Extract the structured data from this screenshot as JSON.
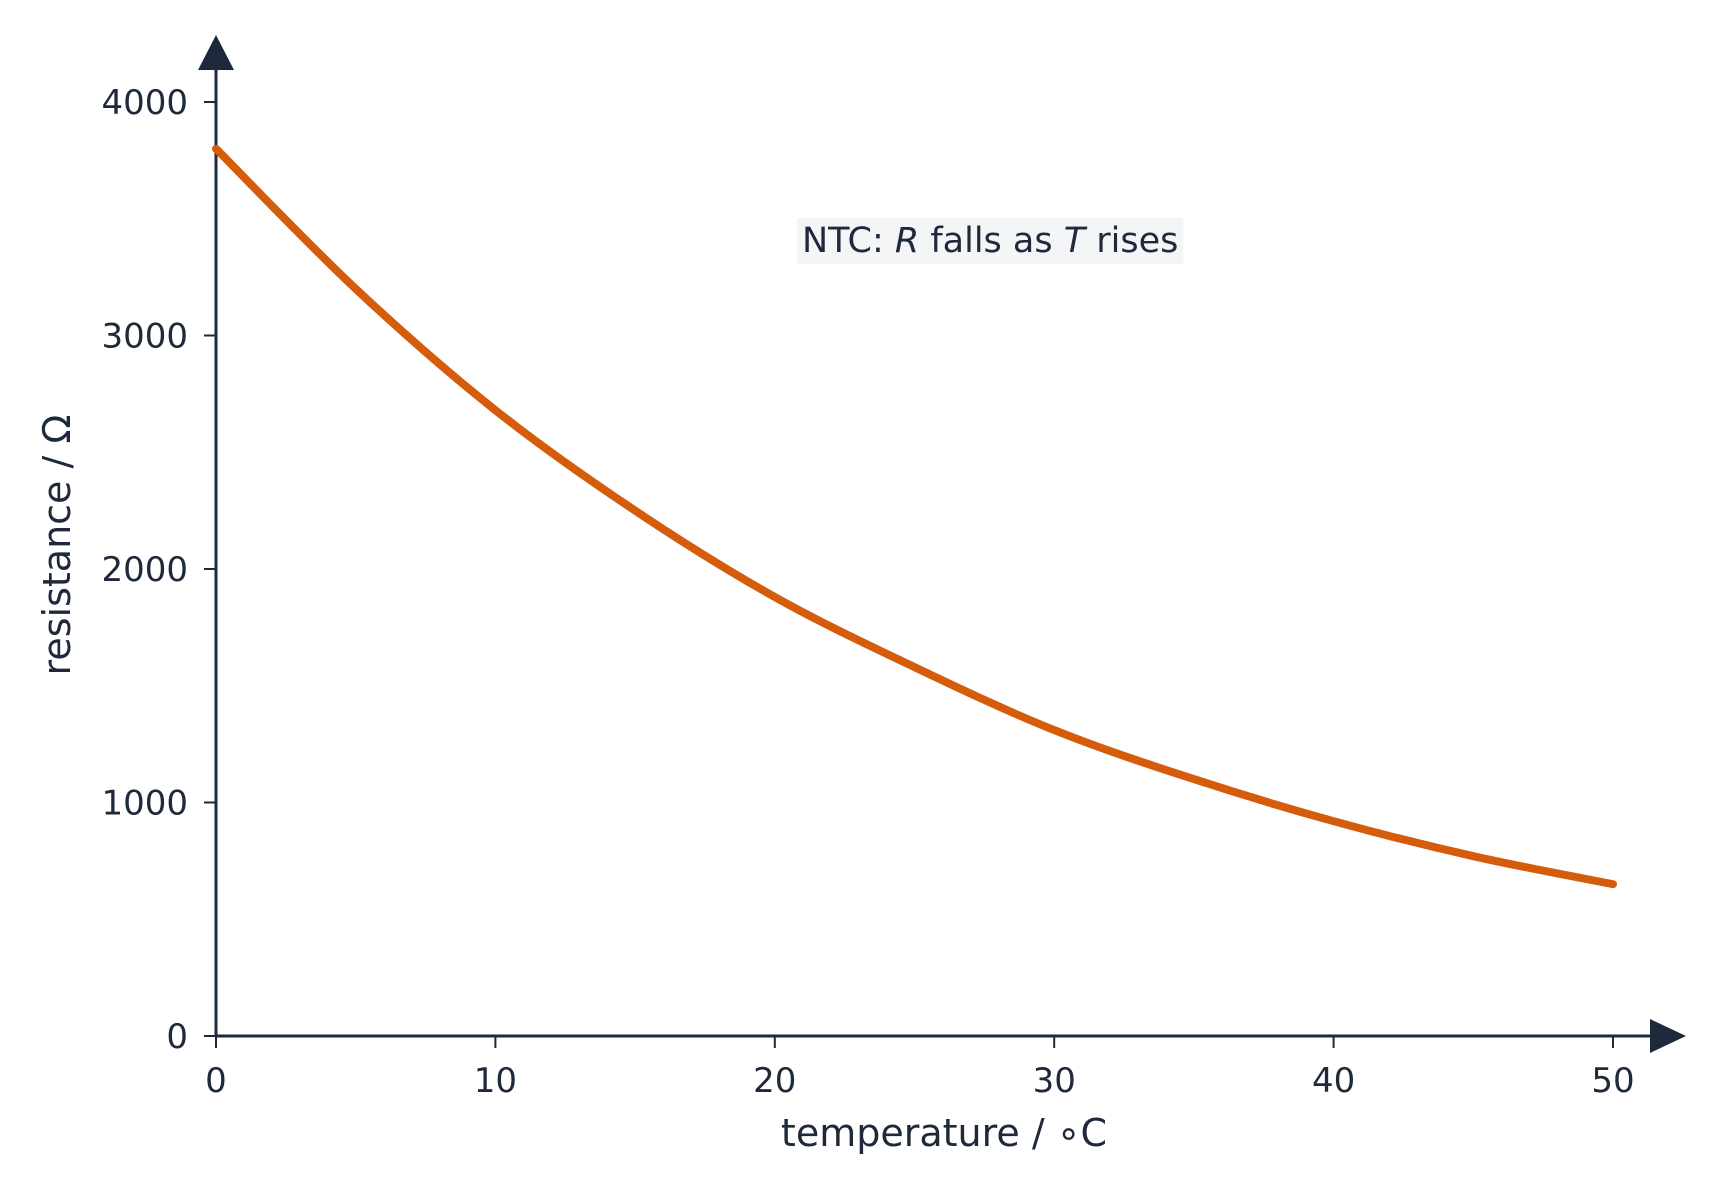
{
  "chart_data": {
    "type": "line",
    "xlabel": "temperature / ∘C",
    "ylabel": "resistance / Ω",
    "xlim": [
      0,
      50
    ],
    "ylim": [
      0,
      4000
    ],
    "x_ticks": [
      0,
      10,
      20,
      30,
      40,
      50
    ],
    "y_ticks": [
      0,
      1000,
      2000,
      3000,
      4000
    ],
    "x_tick_labels": [
      "0",
      "10",
      "20",
      "30",
      "40",
      "50"
    ],
    "y_tick_labels": [
      "0",
      "1000",
      "2000",
      "3000",
      "4000"
    ],
    "grid": false,
    "series": [
      {
        "color": "#d45c0a",
        "x": [
          0,
          5,
          10,
          15,
          20,
          25,
          30,
          35,
          40,
          45,
          50
        ],
        "y": [
          3800,
          3200,
          2680,
          2250,
          1880,
          1580,
          1310,
          1100,
          920,
          770,
          650
        ]
      }
    ],
    "annotation": {
      "prefix": "NTC: ",
      "var1": "R",
      "middle": " falls as ",
      "var2": "T",
      "suffix": " rises"
    },
    "colors": {
      "axis": "#1e293b",
      "text": "#1e293b",
      "curve": "#d45c0a",
      "annotation_bg": "#f3f5f7"
    }
  }
}
